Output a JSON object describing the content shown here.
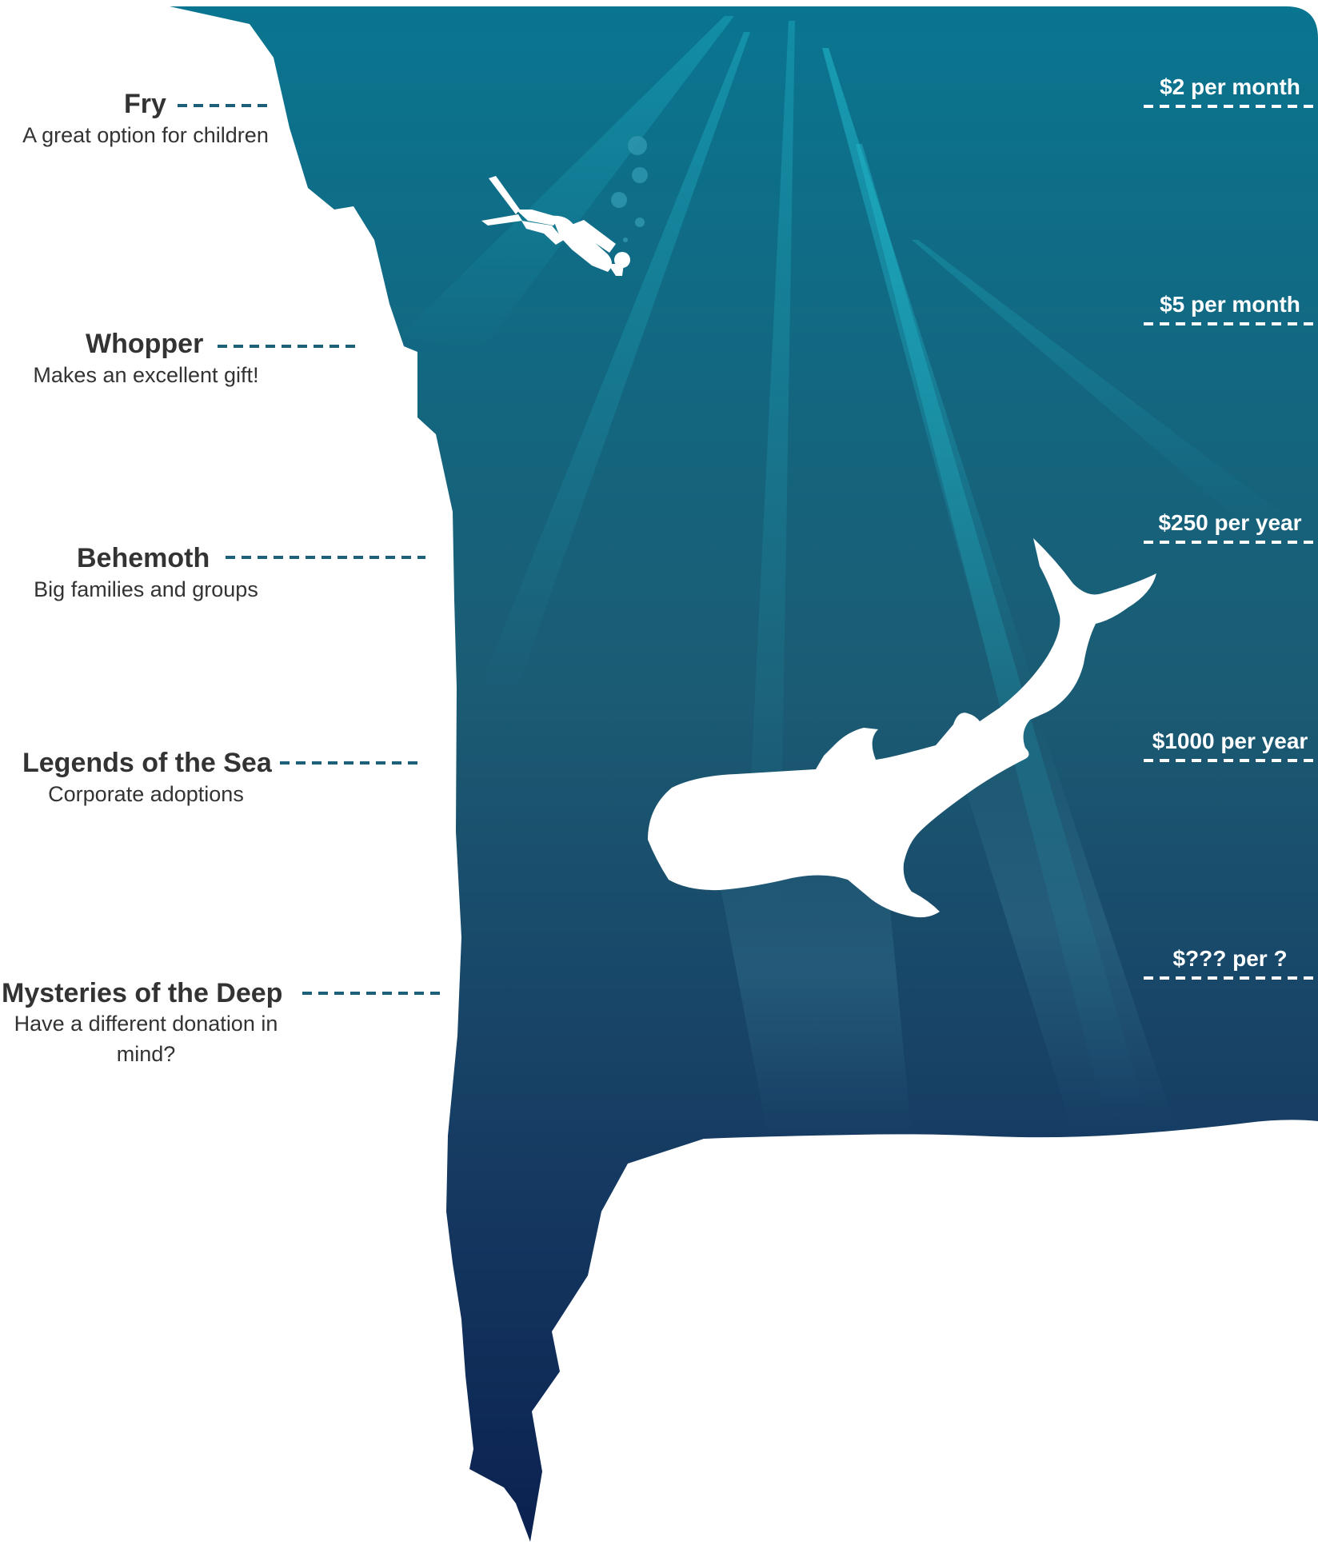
{
  "tiers": [
    {
      "name": "Fry",
      "description": "A great option for children",
      "price": "$2 per month"
    },
    {
      "name": "Whopper",
      "description": "Makes an excellent gift!",
      "price": "$5 per month"
    },
    {
      "name": "Behemoth",
      "description": "Big families and groups",
      "price": "$250 per year"
    },
    {
      "name": "Legends of the Sea",
      "description": "Corporate adoptions",
      "price": "$1000 per year"
    },
    {
      "name": "Mysteries of the Deep",
      "description": "Have a different donation in mind?",
      "price": "$??? per ?"
    }
  ],
  "colors": {
    "water_top": "#0a7590",
    "water_mid": "#1b5b73",
    "water_bottom": "#0b2150",
    "text": "#333333",
    "dash_left": "#1e5f7a",
    "light_ray": "#20b5c8",
    "silhouette": "#ffffff"
  },
  "illustration": {
    "diver": "scuba-diver-silhouette-icon",
    "whale_shark": "whale-shark-silhouette-icon",
    "bubbles": "bubbles-icon"
  }
}
